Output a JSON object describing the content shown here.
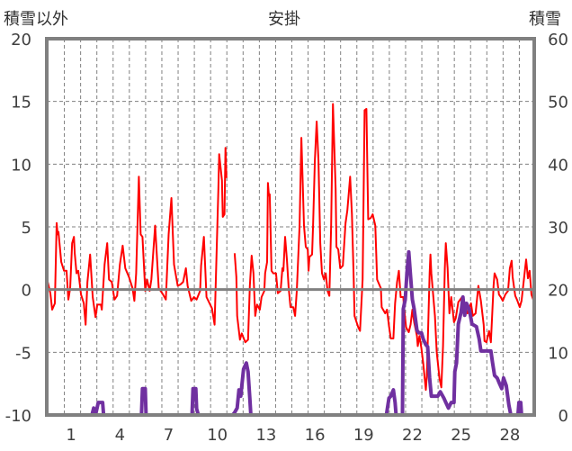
{
  "chart_data": {
    "type": "line",
    "title": "安掛",
    "ylabel_left": "積雪以外",
    "ylabel_right": "積雪",
    "ylim_left": [
      -10,
      20
    ],
    "ylim_right": [
      0,
      60
    ],
    "yticks_left": [
      "20",
      "15",
      "10",
      "5",
      "0",
      "-5",
      "-10"
    ],
    "yticks_right": [
      "60",
      "50",
      "40",
      "30",
      "20",
      "10",
      "0"
    ],
    "xlim": [
      0,
      30
    ],
    "xticks": [
      {
        "day": 1,
        "label": "1"
      },
      {
        "day": 4,
        "label": "4"
      },
      {
        "day": 7,
        "label": "7"
      },
      {
        "day": 10,
        "label": "10"
      },
      {
        "day": 13,
        "label": "13"
      },
      {
        "day": 16,
        "label": "16"
      },
      {
        "day": 19,
        "label": "19"
      },
      {
        "day": 22,
        "label": "22"
      },
      {
        "day": 25,
        "label": "25"
      },
      {
        "day": 28,
        "label": "28"
      }
    ],
    "grid": true,
    "series": [
      {
        "name": "積雪以外",
        "axis": "left",
        "color": "#ff0000",
        "points": [
          [
            0.06,
            0.6
          ],
          [
            0.22,
            -0.3
          ],
          [
            0.33,
            -1.6
          ],
          [
            0.5,
            -1.1
          ],
          [
            0.61,
            5.3
          ],
          [
            0.67,
            4.4
          ],
          [
            0.72,
            4.6
          ],
          [
            0.89,
            2.2
          ],
          [
            1.06,
            1.5
          ],
          [
            1.22,
            1.5
          ],
          [
            1.33,
            -0.8
          ],
          [
            1.44,
            0.1
          ],
          [
            1.56,
            3.7
          ],
          [
            1.67,
            4.2
          ],
          [
            1.72,
            2.9
          ],
          [
            1.83,
            1.3
          ],
          [
            1.94,
            1.5
          ],
          [
            2.11,
            -0.4
          ],
          [
            2.28,
            -1.1
          ],
          [
            2.39,
            -2.8
          ],
          [
            2.5,
            0.6
          ],
          [
            2.67,
            2.8
          ],
          [
            2.83,
            -0.6
          ],
          [
            3.0,
            -2.2
          ],
          [
            3.11,
            -1.2
          ],
          [
            3.33,
            -1.2
          ],
          [
            3.39,
            -1.6
          ],
          [
            3.56,
            2.0
          ],
          [
            3.72,
            3.7
          ],
          [
            3.83,
            0.8
          ],
          [
            4.0,
            0.6
          ],
          [
            4.17,
            -0.8
          ],
          [
            4.33,
            -0.5
          ],
          [
            4.5,
            2.0
          ],
          [
            4.67,
            3.5
          ],
          [
            4.83,
            1.7
          ],
          [
            5.06,
            1.0
          ],
          [
            5.28,
            0.1
          ],
          [
            5.39,
            -0.9
          ],
          [
            5.5,
            1.3
          ],
          [
            5.67,
            9.0
          ],
          [
            5.78,
            4.4
          ],
          [
            5.89,
            4.2
          ],
          [
            6.06,
            -0.1
          ],
          [
            6.17,
            0.8
          ],
          [
            6.33,
            -0.1
          ],
          [
            6.44,
            0.8
          ],
          [
            6.67,
            5.1
          ],
          [
            6.89,
            0.1
          ],
          [
            7.11,
            -0.3
          ],
          [
            7.33,
            -0.8
          ],
          [
            7.5,
            4.4
          ],
          [
            7.67,
            7.3
          ],
          [
            7.83,
            2.0
          ],
          [
            8.06,
            0.3
          ],
          [
            8.22,
            0.4
          ],
          [
            8.39,
            0.6
          ],
          [
            8.56,
            1.7
          ],
          [
            8.67,
            0.3
          ],
          [
            8.89,
            -0.9
          ],
          [
            9.06,
            -0.6
          ],
          [
            9.22,
            -0.8
          ],
          [
            9.44,
            -0.1
          ],
          [
            9.5,
            1.9
          ],
          [
            9.67,
            4.2
          ],
          [
            9.83,
            -0.6
          ],
          [
            10.17,
            -1.5
          ],
          [
            10.33,
            -2.8
          ],
          [
            10.56,
            8.0
          ],
          [
            10.61,
            10.8
          ],
          [
            10.78,
            8.7
          ],
          [
            10.83,
            5.8
          ],
          [
            10.94,
            6.0
          ],
          [
            11.0,
            11.3
          ],
          [
            11.06,
            8.9
          ],
          null,
          [
            11.56,
            2.9
          ],
          [
            11.67,
            1.0
          ],
          [
            11.72,
            -2.1
          ],
          [
            11.89,
            -4.0
          ],
          [
            12.0,
            -3.5
          ],
          [
            12.22,
            -4.2
          ],
          [
            12.39,
            -4.0
          ],
          [
            12.5,
            0.3
          ],
          [
            12.61,
            2.7
          ],
          [
            12.72,
            1.3
          ],
          [
            12.83,
            -2.1
          ],
          [
            12.94,
            -1.2
          ],
          [
            13.11,
            -1.6
          ],
          [
            13.22,
            -0.6
          ],
          [
            13.39,
            -0.1
          ],
          [
            13.44,
            1.3
          ],
          [
            13.56,
            2.2
          ],
          [
            13.61,
            8.5
          ],
          [
            13.67,
            7.5
          ],
          [
            13.72,
            7.6
          ],
          [
            13.83,
            1.5
          ],
          [
            13.94,
            1.3
          ],
          [
            14.11,
            1.3
          ],
          [
            14.22,
            -0.3
          ],
          [
            14.39,
            -0.1
          ],
          [
            14.5,
            1.7
          ],
          [
            14.56,
            1.5
          ],
          [
            14.67,
            4.2
          ],
          [
            14.78,
            2.4
          ],
          [
            14.89,
            0.1
          ],
          [
            15.0,
            -1.4
          ],
          [
            15.17,
            -1.4
          ],
          [
            15.28,
            -2.1
          ],
          [
            15.39,
            -0.1
          ],
          [
            15.56,
            5.1
          ],
          [
            15.67,
            12.1
          ],
          [
            15.83,
            5.1
          ],
          [
            15.94,
            3.4
          ],
          [
            16.06,
            3.2
          ],
          [
            16.11,
            1.5
          ],
          [
            16.17,
            2.6
          ],
          [
            16.33,
            2.8
          ],
          [
            16.39,
            5.1
          ],
          [
            16.5,
            10.3
          ],
          [
            16.61,
            13.4
          ],
          [
            16.72,
            10.3
          ],
          [
            16.83,
            3.7
          ],
          [
            16.94,
            1.3
          ],
          [
            17.06,
            0.8
          ],
          [
            17.17,
            1.3
          ],
          [
            17.28,
            -0.1
          ],
          [
            17.39,
            -0.5
          ],
          [
            17.5,
            5.1
          ],
          [
            17.61,
            14.8
          ],
          [
            17.78,
            8.0
          ],
          [
            17.83,
            3.4
          ],
          [
            17.94,
            3.2
          ],
          [
            18.06,
            1.7
          ],
          [
            18.22,
            1.9
          ],
          [
            18.39,
            5.3
          ],
          [
            18.5,
            6.3
          ],
          [
            18.67,
            9.0
          ],
          [
            18.78,
            6.0
          ],
          [
            18.89,
            0.8
          ],
          [
            18.94,
            -2.1
          ],
          [
            19.17,
            -3.0
          ],
          [
            19.28,
            -3.3
          ],
          [
            19.44,
            0.8
          ],
          [
            19.56,
            14.3
          ],
          [
            19.67,
            14.4
          ],
          [
            19.78,
            5.6
          ],
          [
            19.94,
            5.7
          ],
          [
            20.06,
            6.0
          ],
          [
            20.22,
            5.1
          ],
          [
            20.33,
            0.8
          ],
          [
            20.56,
            0.1
          ],
          [
            20.61,
            -1.4
          ],
          [
            20.83,
            -1.9
          ],
          [
            20.94,
            -1.6
          ],
          [
            21.06,
            -2.9
          ],
          [
            21.17,
            -3.9
          ],
          [
            21.33,
            -3.9
          ],
          [
            21.44,
            -1.1
          ],
          [
            21.56,
            0.6
          ],
          [
            21.67,
            1.5
          ],
          [
            21.78,
            -0.6
          ],
          [
            21.94,
            -0.6
          ],
          [
            22.0,
            -1.6
          ],
          [
            22.11,
            -3.0
          ],
          [
            22.28,
            -3.4
          ],
          [
            22.39,
            -2.8
          ],
          [
            22.5,
            -1.6
          ],
          [
            22.61,
            -2.6
          ],
          [
            22.78,
            -3.7
          ],
          [
            22.83,
            -4.5
          ],
          [
            22.94,
            -3.7
          ],
          [
            23.06,
            -4.7
          ],
          [
            23.17,
            -5.9
          ],
          [
            23.33,
            -8.0
          ],
          [
            23.39,
            -6.9
          ],
          [
            23.56,
            1.3
          ],
          [
            23.61,
            2.8
          ],
          [
            23.67,
            1.3
          ],
          [
            23.89,
            -2.1
          ],
          [
            24.0,
            -5.0
          ],
          [
            24.17,
            -7.1
          ],
          [
            24.28,
            -7.8
          ],
          [
            24.39,
            -4.5
          ],
          [
            24.5,
            1.7
          ],
          [
            24.56,
            3.7
          ],
          [
            24.67,
            1.7
          ],
          [
            24.78,
            -1.9
          ],
          [
            24.89,
            -0.6
          ],
          [
            25.06,
            -2.6
          ],
          [
            25.17,
            -2.3
          ],
          [
            25.33,
            -1.0
          ],
          [
            25.56,
            -0.6
          ],
          [
            25.72,
            -1.1
          ],
          [
            25.89,
            -1.9
          ],
          [
            26.11,
            -1.1
          ],
          [
            26.22,
            -2.1
          ],
          [
            26.39,
            -1.9
          ],
          [
            26.56,
            0.3
          ],
          [
            26.72,
            -0.9
          ],
          [
            26.89,
            -2.8
          ],
          [
            26.94,
            -4.1
          ],
          [
            27.06,
            -4.2
          ],
          [
            27.22,
            -3.3
          ],
          [
            27.33,
            -4.2
          ],
          [
            27.5,
            0.3
          ],
          [
            27.56,
            1.3
          ],
          [
            27.72,
            0.8
          ],
          [
            27.83,
            -0.4
          ],
          [
            27.94,
            -0.6
          ],
          [
            28.06,
            -0.9
          ],
          [
            28.22,
            -0.4
          ],
          [
            28.39,
            -0.1
          ],
          [
            28.5,
            1.7
          ],
          [
            28.61,
            2.3
          ],
          [
            28.67,
            1.0
          ],
          [
            28.83,
            -0.5
          ],
          [
            28.94,
            -0.8
          ],
          [
            29.11,
            -1.4
          ],
          [
            29.22,
            -0.9
          ],
          [
            29.44,
            1.7
          ],
          [
            29.5,
            2.4
          ],
          [
            29.61,
            0.9
          ],
          [
            29.72,
            1.5
          ],
          [
            29.83,
            -0.4
          ],
          [
            29.94,
            -0.8
          ]
        ]
      },
      {
        "name": "積雪",
        "axis": "right",
        "color": "#7030a0",
        "points": [
          [
            0,
            0
          ],
          [
            2.78,
            0
          ],
          [
            2.89,
            1.1
          ],
          [
            3.0,
            0
          ],
          [
            3.17,
            2.0
          ],
          [
            3.44,
            2.0
          ],
          [
            3.5,
            0
          ],
          [
            5.83,
            0
          ],
          [
            5.89,
            4.2
          ],
          [
            6.06,
            4.2
          ],
          [
            6.11,
            0
          ],
          [
            8.94,
            0
          ],
          [
            9.0,
            4.2
          ],
          [
            9.17,
            4.2
          ],
          [
            9.22,
            1.0
          ],
          [
            9.33,
            0
          ],
          [
            11.44,
            0
          ],
          [
            11.56,
            0.4
          ],
          [
            11.72,
            1.1
          ],
          [
            11.83,
            4.0
          ],
          [
            11.94,
            3.0
          ],
          [
            12.11,
            7.3
          ],
          [
            12.28,
            8.3
          ],
          [
            12.39,
            6.9
          ],
          [
            12.5,
            2.6
          ],
          [
            12.56,
            0
          ],
          [
            20.9,
            0
          ],
          [
            21.06,
            2.7
          ],
          [
            21.17,
            3.0
          ],
          [
            21.33,
            4.0
          ],
          [
            21.44,
            2.0
          ],
          [
            21.5,
            0
          ],
          [
            21.89,
            0
          ],
          [
            21.94,
            16.9
          ],
          [
            22.06,
            18.4
          ],
          [
            22.17,
            22.7
          ],
          [
            22.28,
            26.0
          ],
          [
            22.39,
            22.1
          ],
          [
            22.5,
            18.4
          ],
          [
            22.61,
            16.9
          ],
          [
            22.78,
            13.5
          ],
          [
            22.89,
            13.1
          ],
          [
            23.06,
            13.1
          ],
          [
            23.17,
            12.1
          ],
          [
            23.33,
            11.2
          ],
          [
            23.44,
            10.9
          ],
          [
            23.56,
            5.9
          ],
          [
            23.67,
            3.0
          ],
          [
            24.06,
            3.0
          ],
          [
            24.22,
            3.7
          ],
          [
            24.44,
            2.7
          ],
          [
            24.56,
            2.0
          ],
          [
            24.72,
            1.1
          ],
          [
            24.89,
            2.0
          ],
          [
            25.06,
            2.0
          ],
          [
            25.11,
            6.9
          ],
          [
            25.22,
            8.3
          ],
          [
            25.33,
            14.5
          ],
          [
            25.5,
            16.4
          ],
          [
            25.61,
            18.8
          ],
          [
            25.72,
            15.9
          ],
          [
            25.83,
            17.8
          ],
          [
            26.0,
            16.9
          ],
          [
            26.17,
            14.5
          ],
          [
            26.44,
            14.1
          ],
          [
            26.61,
            12.1
          ],
          [
            26.72,
            10.2
          ],
          [
            27.33,
            10.2
          ],
          [
            27.44,
            8.3
          ],
          [
            27.56,
            6.3
          ],
          [
            27.72,
            5.9
          ],
          [
            27.83,
            5.2
          ],
          [
            28.0,
            4.2
          ],
          [
            28.11,
            5.9
          ],
          [
            28.28,
            4.7
          ],
          [
            28.44,
            1.6
          ],
          [
            28.56,
            0
          ],
          [
            29.0,
            0
          ],
          [
            29.06,
            2.0
          ],
          [
            29.17,
            2.0
          ],
          [
            29.22,
            0
          ],
          [
            29.9,
            0
          ]
        ]
      }
    ]
  }
}
